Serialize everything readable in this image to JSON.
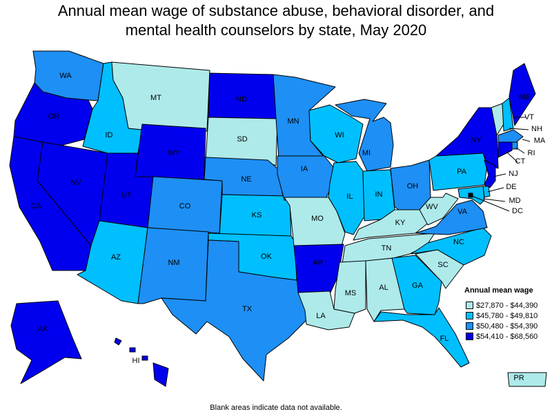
{
  "title_line1": "Annual mean wage of substance abuse, behavioral disorder, and",
  "title_line2": "mental health counselors by state, May 2020",
  "legend": {
    "title": "Annual mean wage",
    "bins": [
      {
        "label": "$27,870 - $44,390",
        "color": "#aeeaea"
      },
      {
        "label": "$45,780 - $49,810",
        "color": "#00bfff"
      },
      {
        "label": "$50,480 - $54,390",
        "color": "#1e8ff5"
      },
      {
        "label": "$54,410 - $68,560",
        "color": "#0000ee"
      }
    ]
  },
  "footnote": "Blank areas indicate data not available.",
  "states": {
    "WA": 2,
    "OR": 3,
    "CA": 3,
    "NV": 3,
    "ID": 1,
    "MT": 0,
    "WY": 3,
    "UT": 3,
    "AZ": 1,
    "CO": 2,
    "NM": 2,
    "ND": 3,
    "SD": 0,
    "NE": 2,
    "KS": 1,
    "OK": 1,
    "TX": 2,
    "MN": 2,
    "IA": 2,
    "MO": 0,
    "AR": 3,
    "LA": 0,
    "WI": 1,
    "IL": 1,
    "MI": 2,
    "IN": 1,
    "OH": 2,
    "KY": 0,
    "TN": 0,
    "MS": 0,
    "AL": 0,
    "GA": 1,
    "FL": 1,
    "SC": 0,
    "NC": 1,
    "VA": 2,
    "WV": 0,
    "PA": 1,
    "NY": 3,
    "VT": 0,
    "NH": 1,
    "ME": 3,
    "MA": 2,
    "RI": 2,
    "CT": 3,
    "NJ": 3,
    "DE": 1,
    "MD": 1,
    "DC": 3,
    "AK": 3,
    "HI": 3,
    "PR": 0
  }
}
